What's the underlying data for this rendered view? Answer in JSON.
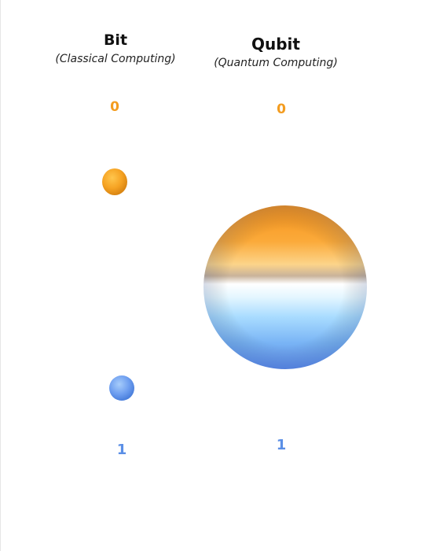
{
  "bit": {
    "title": "Bit",
    "subtitle": "(Classical Computing)",
    "state_zero": "0",
    "state_one": "1"
  },
  "qubit": {
    "title": "Qubit",
    "subtitle": "(Quantum Computing)",
    "state_zero": "0",
    "state_one": "1"
  },
  "colors": {
    "zero_orange": "#f39c1f",
    "one_blue": "#5b8fe6",
    "title_text": "#111111"
  }
}
